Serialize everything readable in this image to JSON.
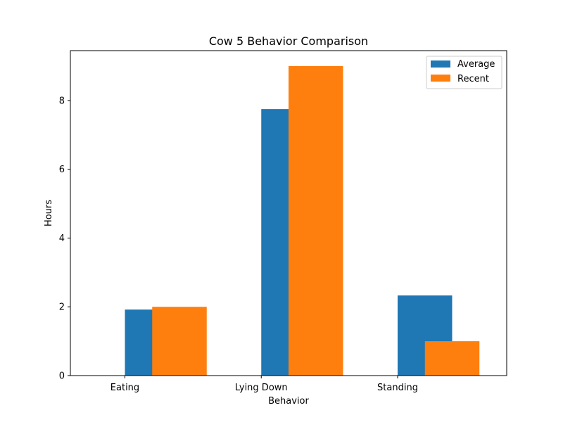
{
  "chart_data": {
    "type": "bar",
    "title": "Cow 5 Behavior Comparison",
    "xlabel": "Behavior",
    "ylabel": "Hours",
    "categories": [
      "Eating",
      "Lying Down",
      "Standing"
    ],
    "series": [
      {
        "name": "Average",
        "values": [
          1.92,
          7.75,
          2.33
        ],
        "color": "#1f77b4"
      },
      {
        "name": "Recent",
        "values": [
          2.0,
          9.0,
          1.0
        ],
        "color": "#ff7f0e"
      }
    ],
    "ylim": [
      0,
      9.45
    ],
    "yticks": [
      "0",
      "2",
      "4",
      "6",
      "8"
    ],
    "grid": false,
    "legend_position": "top-right"
  }
}
